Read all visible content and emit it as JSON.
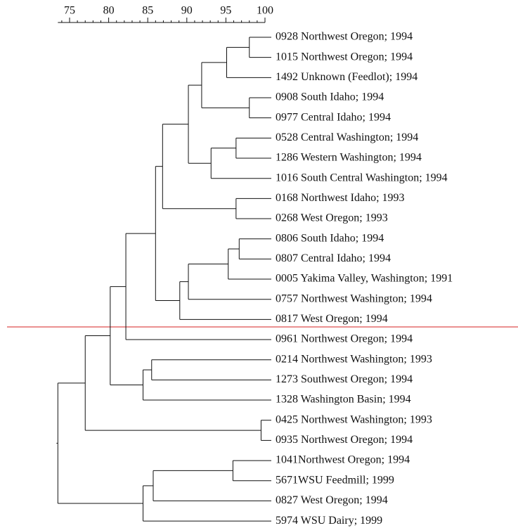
{
  "chart_data": {
    "type": "dendrogram",
    "xlim": [
      73.5,
      100
    ],
    "xticks": [
      75,
      80,
      85,
      90,
      95,
      100
    ],
    "minor_xticks": [
      74,
      76,
      77,
      78,
      79,
      81,
      82,
      83,
      84,
      86,
      87,
      88,
      89,
      91,
      92,
      93,
      94,
      96,
      97,
      98,
      99
    ],
    "tree": {
      "similarity": 73.5,
      "children": [
        {
          "similarity": 77.0,
          "children": [
            {
              "similarity": 80.2,
              "children": [
                {
                  "similarity": 82.2,
                  "children": [
                    {
                      "similarity": 86.0,
                      "children": [
                        {
                          "similarity": 86.9,
                          "children": [
                            {
                              "similarity": 90.2,
                              "children": [
                                {
                                  "similarity": 91.9,
                                  "children": [
                                    {
                                      "similarity": 95.1,
                                      "children": [
                                        {
                                          "similarity": 98.0,
                                          "children": [
                                            {
                                              "label": "0928 Northwest Oregon; 1994"
                                            },
                                            {
                                              "label": "1015 Northwest Oregon; 1994"
                                            }
                                          ]
                                        },
                                        {
                                          "label": "1492 Unknown (Feedlot); 1994"
                                        }
                                      ]
                                    },
                                    {
                                      "similarity": 98.0,
                                      "children": [
                                        {
                                          "label": "0908 South Idaho; 1994"
                                        },
                                        {
                                          "label": "0977 Central Idaho; 1994"
                                        }
                                      ]
                                    }
                                  ]
                                },
                                {
                                  "similarity": 93.1,
                                  "children": [
                                    {
                                      "similarity": 96.3,
                                      "children": [
                                        {
                                          "label": "0528 Central Washington; 1994"
                                        },
                                        {
                                          "label": "1286 Western Washington; 1994"
                                        }
                                      ]
                                    },
                                    {
                                      "label": "1016 South Central Washington; 1994"
                                    }
                                  ]
                                }
                              ]
                            },
                            {
                              "similarity": 96.3,
                              "children": [
                                {
                                  "label": "0168 Northwest Idaho; 1993"
                                },
                                {
                                  "label": "0268 West Oregon; 1993"
                                }
                              ]
                            }
                          ]
                        },
                        {
                          "similarity": 89.1,
                          "children": [
                            {
                              "similarity": 90.2,
                              "children": [
                                {
                                  "similarity": 95.3,
                                  "children": [
                                    {
                                      "similarity": 96.7,
                                      "children": [
                                        {
                                          "label": "0806 South Idaho; 1994"
                                        },
                                        {
                                          "label": "0807 Central Idaho; 1994"
                                        }
                                      ]
                                    },
                                    {
                                      "label": "0005 Yakima Valley, Washington; 1991"
                                    }
                                  ]
                                },
                                {
                                  "label": "0757 Northwest Washington; 1994"
                                }
                              ]
                            },
                            {
                              "label": "0817 West Oregon; 1994"
                            }
                          ]
                        }
                      ]
                    },
                    {
                      "label": "0961 Northwest Oregon; 1994"
                    }
                  ]
                },
                {
                  "similarity": 84.4,
                  "children": [
                    {
                      "similarity": 85.5,
                      "children": [
                        {
                          "label": "0214 Northwest Washington; 1993"
                        },
                        {
                          "label": "1273 Southwest Oregon; 1994"
                        }
                      ]
                    },
                    {
                      "label": "1328 Washington Basin; 1994"
                    }
                  ]
                }
              ]
            },
            {
              "similarity": 99.5,
              "children": [
                {
                  "label": "0425 Northwest Washington; 1993"
                },
                {
                  "label": "0935 Northwest Oregon; 1994"
                }
              ]
            }
          ]
        },
        {
          "similarity": 84.4,
          "children": [
            {
              "similarity": 85.7,
              "children": [
                {
                  "similarity": 95.9,
                  "children": [
                    {
                      "label": "1041Northwest Oregon; 1994"
                    },
                    {
                      "label": "5671WSU Feedmill; 1999"
                    }
                  ]
                },
                {
                  "label": "0827 West Oregon; 1994"
                }
              ]
            },
            {
              "label": "5974 WSU Dairy; 1999"
            }
          ]
        }
      ]
    }
  }
}
